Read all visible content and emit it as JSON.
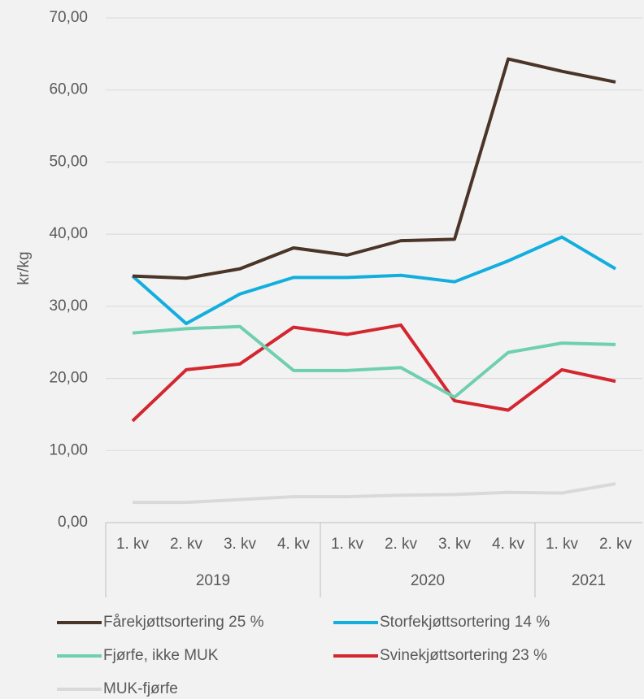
{
  "chart_data": {
    "type": "line",
    "y_label": "kr/kg",
    "ylim": [
      0,
      70
    ],
    "yticks": [
      {
        "value": 0,
        "label": "0,00"
      },
      {
        "value": 10,
        "label": "10,00"
      },
      {
        "value": 20,
        "label": "20,00"
      },
      {
        "value": 30,
        "label": "30,00"
      },
      {
        "value": 40,
        "label": "40,00"
      },
      {
        "value": 50,
        "label": "50,00"
      },
      {
        "value": 60,
        "label": "60,00"
      },
      {
        "value": 70,
        "label": "70,00"
      }
    ],
    "grid": true,
    "groups": [
      {
        "label": "2019",
        "categories": [
          "1. kv",
          "2. kv",
          "3. kv",
          "4. kv"
        ]
      },
      {
        "label": "2020",
        "categories": [
          "1. kv",
          "2. kv",
          "3. kv",
          "4. kv"
        ]
      },
      {
        "label": "2021",
        "categories": [
          "1. kv",
          "2. kv"
        ]
      }
    ],
    "series": [
      {
        "name": "Fårekjøttsortering 25 %",
        "color": "#4b3428",
        "values": [
          34.2,
          33.9,
          35.2,
          38.1,
          37.1,
          39.1,
          39.3,
          64.3,
          62.6,
          61.1
        ]
      },
      {
        "name": "Storfekjøttsortering 14 %",
        "color": "#12aede",
        "values": [
          34.2,
          27.6,
          31.7,
          34.0,
          34.0,
          34.3,
          33.4,
          36.3,
          39.6,
          35.2
        ]
      },
      {
        "name": "Fjørfe, ikke MUK",
        "color": "#6fcfb1",
        "values": [
          26.3,
          26.9,
          27.2,
          21.1,
          21.1,
          21.5,
          17.4,
          23.6,
          24.9,
          24.7
        ]
      },
      {
        "name": "Svinekjøttsortering 23 %",
        "color": "#d4262f",
        "values": [
          14.1,
          21.2,
          22.0,
          27.1,
          26.1,
          27.4,
          16.9,
          15.6,
          21.2,
          19.6
        ]
      },
      {
        "name": "MUK-fjørfe",
        "color": "#d9d9d9",
        "values": [
          2.8,
          2.8,
          3.2,
          3.6,
          3.6,
          3.8,
          3.9,
          4.2,
          4.1,
          5.4
        ]
      }
    ]
  }
}
